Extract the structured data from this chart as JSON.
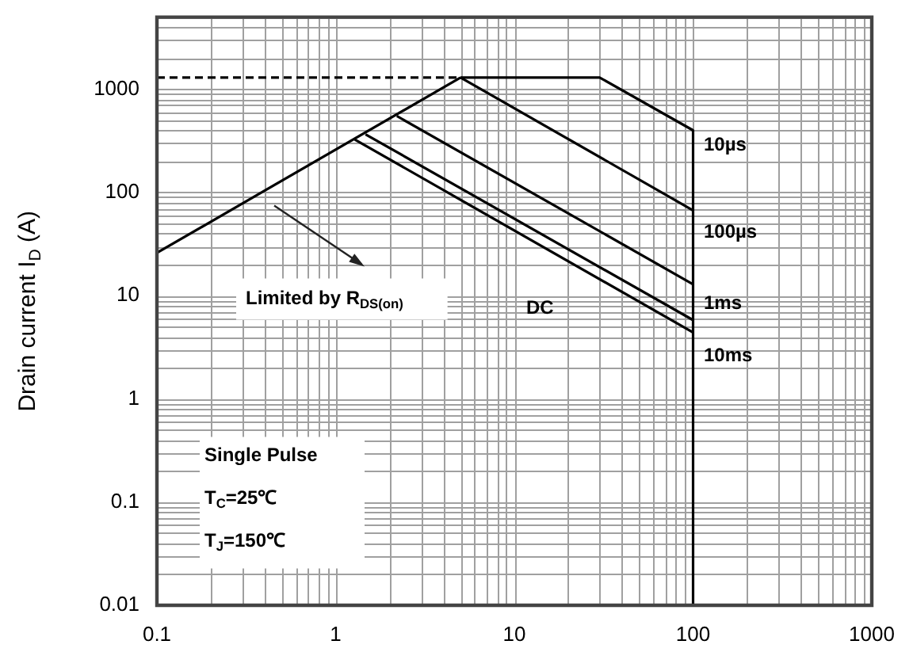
{
  "chart_data": {
    "type": "line",
    "ylabel": "Drain current I$_{D}$ (A)",
    "log": "xy",
    "grid": true,
    "legend": false,
    "marker": "none",
    "xlim": [
      0.1,
      1000
    ],
    "xticks": [
      0.1,
      1,
      10,
      100,
      1000
    ],
    "ylim": [
      0.01,
      5000
    ],
    "yticks": [
      0.01,
      0.1,
      1,
      10,
      100,
      1000
    ],
    "series": [
      {
        "x": [
          0.1,
          5
        ],
        "values": [
          26,
          1300
        ],
        "color": "#000000",
        "line_style": "solid"
      },
      {
        "x": [
          0.1,
          5
        ],
        "values": [
          1300,
          1300
        ],
        "color": "#000000",
        "line_style": "dashed"
      },
      {
        "x": [
          5,
          30,
          100
        ],
        "values": [
          1300,
          1300,
          400
        ],
        "color": "#000000",
        "line_style": "solid"
      },
      {
        "x": [
          5,
          100
        ],
        "values": [
          1300,
          67
        ],
        "color": "#000000",
        "line_style": "solid"
      },
      {
        "x": [
          2.2,
          100
        ],
        "values": [
          550,
          12.9
        ],
        "color": "#000000",
        "line_style": "solid"
      },
      {
        "x": [
          1.47,
          100
        ],
        "values": [
          366,
          5.8
        ],
        "color": "#000000",
        "line_style": "solid"
      },
      {
        "x": [
          1.28,
          100
        ],
        "values": [
          326,
          4.4
        ],
        "color": "#000000",
        "line_style": "solid"
      },
      {
        "x": [
          100,
          100
        ],
        "values": [
          400,
          0.01
        ],
        "color": "#000000",
        "line_style": "solid"
      }
    ],
    "annotations": [
      "10µs",
      "100µs",
      "1ms",
      "10ms",
      "DC",
      "Limited by R$_{DS(on)}$",
      "Single Pulse",
      "T$_{C}$=25℃",
      "T$_{J}$=150℃"
    ]
  }
}
